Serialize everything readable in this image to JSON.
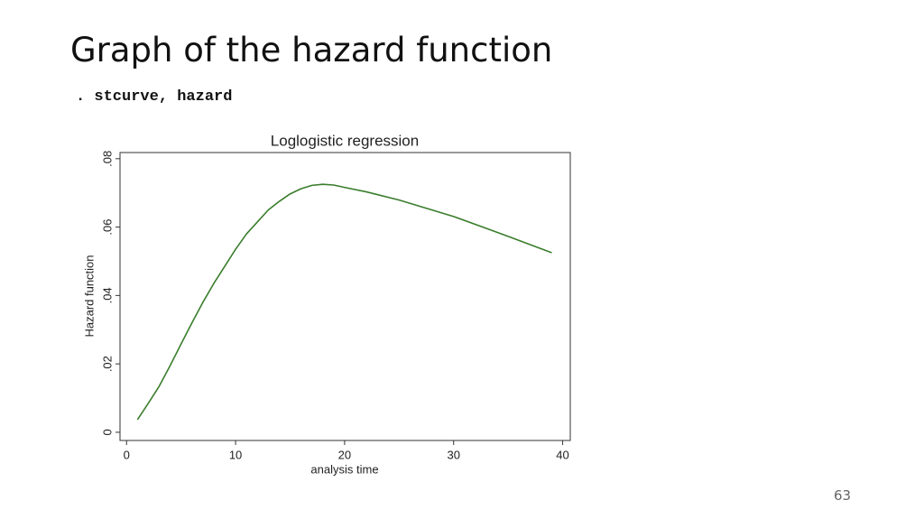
{
  "slide": {
    "title": "Graph of the hazard function",
    "command": ". stcurve, hazard",
    "page_number": "63"
  },
  "chart_data": {
    "type": "line",
    "title": "Loglogistic regression",
    "xlabel": "analysis time",
    "ylabel": "Hazard function",
    "x": [
      1,
      2,
      3,
      4,
      5,
      6,
      7,
      8,
      9,
      10,
      11,
      12,
      13,
      14,
      15,
      16,
      17,
      18,
      19,
      20,
      22,
      25,
      30,
      35,
      39
    ],
    "values": [
      0.0037,
      0.0085,
      0.0135,
      0.0195,
      0.0258,
      0.032,
      0.038,
      0.0435,
      0.0485,
      0.0535,
      0.058,
      0.0615,
      0.065,
      0.0675,
      0.0697,
      0.0712,
      0.0722,
      0.0725,
      0.0723,
      0.0716,
      0.0703,
      0.0679,
      0.0631,
      0.0573,
      0.0525
    ],
    "color": "#3a7d2c",
    "xlim": [
      -0.6,
      40.7
    ],
    "ylim": [
      -0.0024,
      0.0818
    ],
    "xticks": [
      0,
      10,
      20,
      30,
      40
    ],
    "yticks": [
      0,
      {
        "value": 0.02,
        "label": ".02"
      },
      {
        "value": 0.04,
        "label": ".04"
      },
      {
        "value": 0.06,
        "label": ".06"
      },
      {
        "value": 0.08,
        "label": ".08"
      }
    ]
  }
}
